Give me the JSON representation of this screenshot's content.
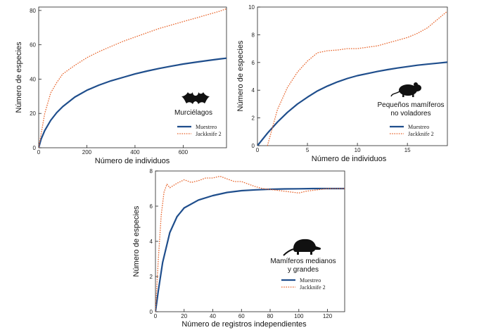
{
  "colors": {
    "muestreo": "#1f4e8c",
    "jackknife": "#e8652c",
    "axis": "#222222",
    "silhouette": "#111111"
  },
  "chart_data": [
    {
      "type": "line",
      "id": "murcielagos",
      "group_label": [
        "Murciélagos"
      ],
      "icon": "bat-icon",
      "xlabel": "Número de individuos",
      "ylabel": "Número de especies",
      "xlim": [
        0,
        780
      ],
      "ylim": [
        0,
        82
      ],
      "xticks": [
        0,
        200,
        400,
        600
      ],
      "yticks": [
        0,
        20,
        40,
        60,
        80
      ],
      "legend": [
        "Muestreo",
        "Jackknife 2"
      ],
      "series": [
        {
          "name": "Muestreo",
          "style": "solid",
          "x": [
            0,
            10,
            25,
            50,
            75,
            100,
            150,
            200,
            250,
            300,
            350,
            400,
            450,
            500,
            550,
            600,
            650,
            700,
            750,
            780
          ],
          "y": [
            0,
            5,
            10,
            16,
            20.5,
            24,
            29.5,
            33.5,
            36.5,
            39,
            41,
            43,
            44.7,
            46.2,
            47.5,
            48.8,
            49.8,
            50.8,
            51.7,
            52.2
          ]
        },
        {
          "name": "Jackknife 2",
          "style": "dotted",
          "x": [
            0,
            10,
            25,
            50,
            75,
            100,
            150,
            200,
            250,
            300,
            350,
            400,
            450,
            500,
            550,
            600,
            650,
            700,
            750,
            780
          ],
          "y": [
            0,
            8,
            20,
            32,
            38,
            43,
            48,
            52.5,
            56,
            59,
            62,
            64.5,
            67,
            69.5,
            71.5,
            73.5,
            75.5,
            77.5,
            79.5,
            81
          ]
        }
      ]
    },
    {
      "type": "line",
      "id": "pequenos",
      "group_label": [
        "Pequeños mamíferos",
        "no voladores"
      ],
      "icon": "rodent-icon",
      "xlabel": "Número de individuos",
      "ylabel": "Número de especies",
      "xlim": [
        0,
        19
      ],
      "ylim": [
        0,
        10
      ],
      "xticks": [
        0,
        5,
        10,
        15
      ],
      "yticks": [
        0,
        2,
        4,
        6,
        8,
        10
      ],
      "legend": [
        "Muestreo",
        "Jackknife 2"
      ],
      "series": [
        {
          "name": "Muestreo",
          "style": "solid",
          "x": [
            0,
            1,
            2,
            3,
            4,
            5,
            6,
            7,
            8,
            9,
            10,
            11,
            12,
            13,
            14,
            15,
            16,
            17,
            18,
            19
          ],
          "y": [
            0,
            0.9,
            1.7,
            2.4,
            3,
            3.5,
            3.95,
            4.3,
            4.6,
            4.85,
            5.05,
            5.2,
            5.35,
            5.48,
            5.6,
            5.7,
            5.8,
            5.88,
            5.95,
            6.02
          ]
        },
        {
          "name": "Jackknife 2",
          "style": "dotted",
          "x": [
            1,
            1.5,
            2,
            3,
            4,
            5,
            6,
            7,
            8,
            9,
            10,
            11,
            12,
            13,
            14,
            15,
            16,
            17,
            18,
            19
          ],
          "y": [
            0,
            1.3,
            2.6,
            4.2,
            5.3,
            6.1,
            6.7,
            6.85,
            6.9,
            7.0,
            7.0,
            7.1,
            7.2,
            7.4,
            7.6,
            7.8,
            8.1,
            8.5,
            9.1,
            9.7
          ]
        }
      ]
    },
    {
      "type": "line",
      "id": "medianos",
      "group_label": [
        "Mamíferos medianos",
        "y grandes"
      ],
      "icon": "armadillo-icon",
      "xlabel": "Número de registros independientes",
      "ylabel": "Número de especies",
      "xlim": [
        0,
        132
      ],
      "ylim": [
        0,
        8
      ],
      "xticks": [
        0,
        20,
        40,
        60,
        80,
        100,
        120
      ],
      "yticks": [
        0,
        2,
        4,
        6,
        8
      ],
      "legend": [
        "Muestreo",
        "Jackknife 2"
      ],
      "series": [
        {
          "name": "Muestreo",
          "style": "solid",
          "x": [
            0,
            2,
            5,
            10,
            15,
            20,
            30,
            40,
            50,
            60,
            70,
            80,
            90,
            100,
            110,
            120,
            132
          ],
          "y": [
            0,
            1.2,
            2.8,
            4.5,
            5.4,
            5.9,
            6.35,
            6.6,
            6.78,
            6.88,
            6.93,
            6.96,
            6.98,
            6.99,
            7.0,
            7.0,
            7.0
          ]
        },
        {
          "name": "Jackknife 2",
          "style": "dotted",
          "x": [
            0,
            2,
            4,
            6,
            8,
            10,
            15,
            20,
            25,
            30,
            35,
            40,
            45,
            50,
            55,
            60,
            65,
            70,
            75,
            80,
            85,
            90,
            95,
            100,
            105,
            110,
            115,
            120,
            125,
            132
          ],
          "y": [
            0,
            3,
            5.5,
            6.8,
            7.25,
            7.05,
            7.3,
            7.5,
            7.35,
            7.45,
            7.6,
            7.6,
            7.7,
            7.55,
            7.4,
            7.4,
            7.25,
            7.1,
            7.0,
            6.95,
            6.9,
            6.85,
            6.8,
            6.75,
            6.85,
            6.9,
            6.95,
            7.0,
            7.0,
            7.0
          ]
        }
      ]
    }
  ]
}
